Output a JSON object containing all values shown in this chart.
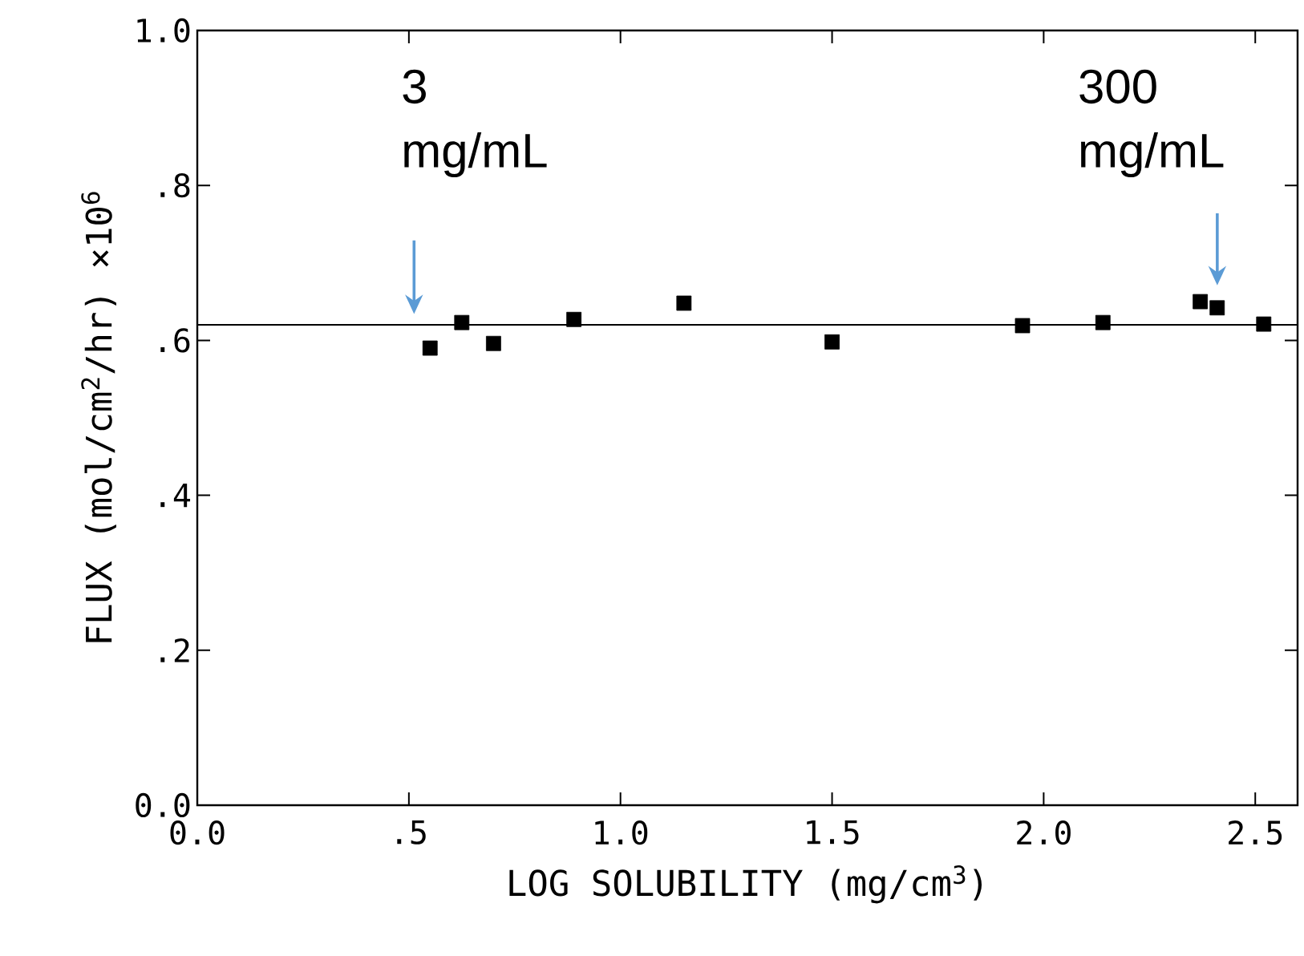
{
  "chart_data": {
    "type": "scatter",
    "xlabel": "LOG SOLUBILITY (mg/cm$^{3}$)",
    "ylabel": "FLUX (mol/cm$^{2}$/hr) ×10$^{6}$",
    "x": [
      0.55,
      0.625,
      0.7,
      0.89,
      1.15,
      1.5,
      1.95,
      2.14,
      2.37,
      2.41,
      2.52
    ],
    "series": [
      {
        "color": "#000000",
        "values": [
          0.59,
          0.623,
          0.596,
          0.627,
          0.648,
          0.598,
          0.619,
          0.623,
          0.65,
          0.642,
          0.621
        ]
      }
    ],
    "marker": "square",
    "xlim": [
      0,
      2.6
    ],
    "ylim": [
      0,
      1.0
    ],
    "xticks": [
      {
        "value": 0,
        "label": "0.0"
      },
      {
        "value": 0.5,
        "label": ".5"
      },
      {
        "value": 1.0,
        "label": "1.0"
      },
      {
        "value": 1.5,
        "label": "1.5"
      },
      {
        "value": 2.0,
        "label": "2.0"
      },
      {
        "value": 2.5,
        "label": "2.5"
      }
    ],
    "yticks": [
      {
        "value": 0,
        "label": "0.0"
      },
      {
        "value": 0.2,
        "label": ".2"
      },
      {
        "value": 0.4,
        "label": ".4"
      },
      {
        "value": 0.6,
        "label": ".6"
      },
      {
        "value": 0.8,
        "label": ".8"
      },
      {
        "value": 1.0,
        "label": "1.0"
      }
    ],
    "ref_lines": [
      {
        "axis": "y",
        "value": 0.62,
        "color": "#000000"
      }
    ],
    "annotations": [
      "3 mg/mL",
      "300 mg/mL"
    ],
    "grid": false
  }
}
